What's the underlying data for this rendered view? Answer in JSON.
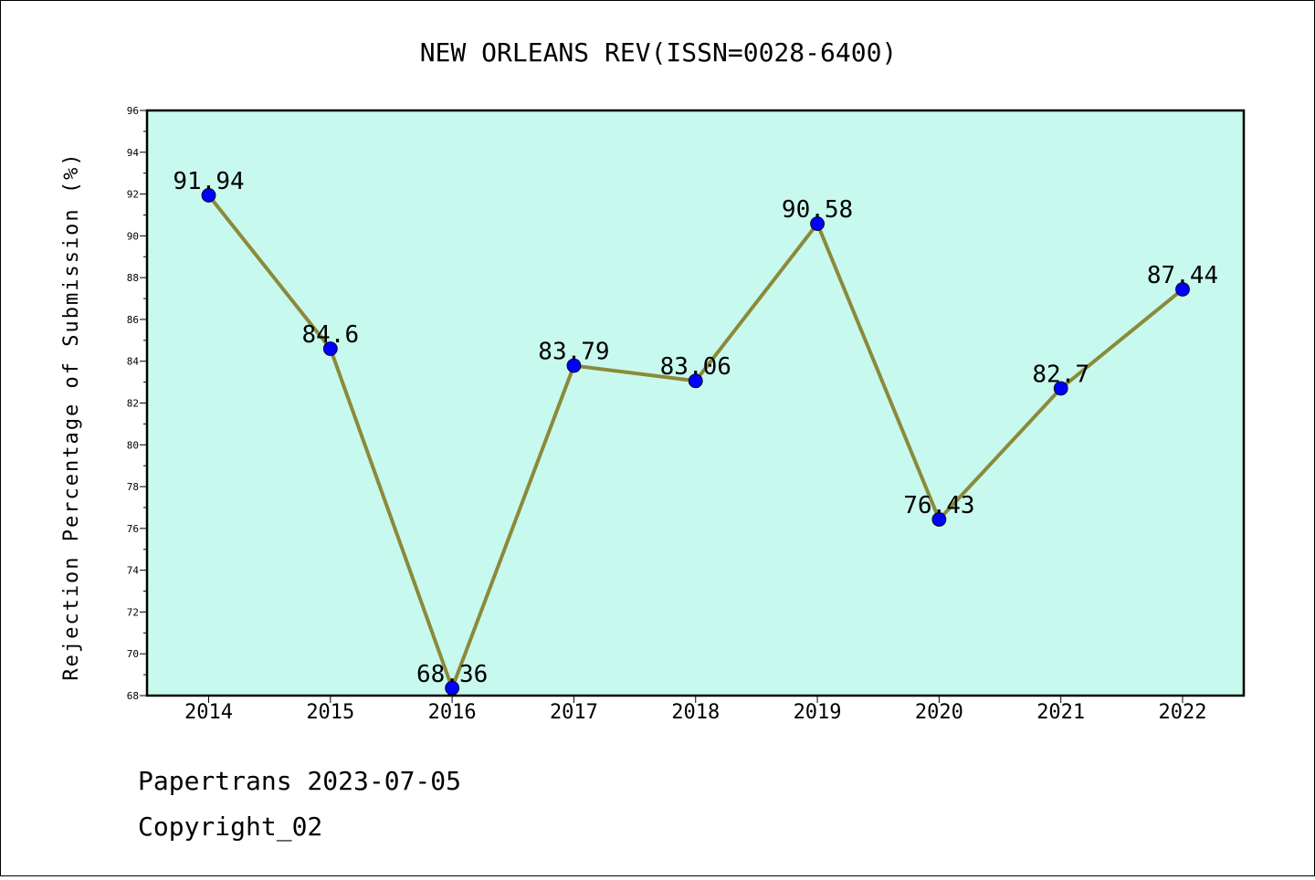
{
  "chart_data": {
    "type": "line",
    "title": "NEW ORLEANS REV(ISSN=0028-6400)",
    "xlabel": "",
    "ylabel": "Rejection Percentage of Submission (%)",
    "ylim": [
      68,
      96
    ],
    "y_ticks": [
      "68",
      "70",
      "72",
      "74",
      "76",
      "78",
      "80",
      "82",
      "84",
      "86",
      "88",
      "90",
      "92",
      "94",
      "96"
    ],
    "categories": [
      "2014",
      "2015",
      "2016",
      "2017",
      "2018",
      "2019",
      "2020",
      "2021",
      "2022"
    ],
    "series": [
      {
        "values": [
          91.94,
          84.6,
          68.36,
          83.79,
          83.06,
          90.58,
          76.43,
          82.7,
          87.44
        ],
        "labels": [
          "91.94",
          "84.6",
          "68.36",
          "83.79",
          "83.06",
          "90.58",
          "76.43",
          "82.7",
          "87.44"
        ]
      }
    ],
    "grid": false,
    "colors": {
      "plot_background": "#c8f9ee",
      "line": "#8b8a3a",
      "marker": "#0000ff"
    }
  },
  "footer": {
    "line1": "Papertrans 2023-07-05",
    "line2": "Copyright_02"
  }
}
